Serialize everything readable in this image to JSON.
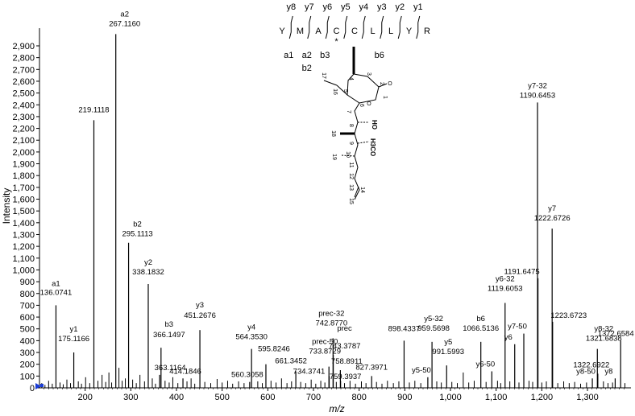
{
  "chart_data": {
    "type": "bar",
    "xlabel": "m/z",
    "ylabel": "Intensity",
    "xlim": [
      100,
      1390
    ],
    "ylim": [
      0,
      3050
    ],
    "x_ticks": [
      "200",
      "300",
      "400",
      "500",
      "600",
      "700",
      "800",
      "900",
      "1,000",
      "1,100",
      "1,200",
      "1,300"
    ],
    "y_ticks": [
      "0",
      "100",
      "200",
      "300",
      "400",
      "500",
      "600",
      "700",
      "800",
      "900",
      "1,000",
      "1,100",
      "1,200",
      "1,300",
      "1,400",
      "1,500",
      "1,600",
      "1,700",
      "1,800",
      "1,900",
      "2,000",
      "2,100",
      "2,200",
      "2,300",
      "2,400",
      "2,500",
      "2,600",
      "2,700",
      "2,800",
      "2,900"
    ],
    "peaks": [
      {
        "mz": 136.0741,
        "intensity": 700,
        "ion": "a1",
        "mass_label": "136.0741"
      },
      {
        "mz": 175.1166,
        "intensity": 300,
        "ion": "y1",
        "mass_label": "175.1166"
      },
      {
        "mz": 219.1118,
        "intensity": 2270,
        "ion": "",
        "mass_label": "219.1118"
      },
      {
        "mz": 267.116,
        "intensity": 3000,
        "ion": "a2",
        "mass_label": "267.1160"
      },
      {
        "mz": 295.1113,
        "intensity": 1230,
        "ion": "b2",
        "mass_label": "295.1113"
      },
      {
        "mz": 338.1832,
        "intensity": 880,
        "ion": "y2",
        "mass_label": "338.1832"
      },
      {
        "mz": 363.1164,
        "intensity": 110,
        "ion": "",
        "mass_label": "363.1164"
      },
      {
        "mz": 366.1497,
        "intensity": 340,
        "ion": "b3",
        "mass_label": "366.1497"
      },
      {
        "mz": 414.1846,
        "intensity": 80,
        "ion": "",
        "mass_label": "414.1846"
      },
      {
        "mz": 451.2676,
        "intensity": 490,
        "ion": "y3",
        "mass_label": "451.2676"
      },
      {
        "mz": 560.3058,
        "intensity": 50,
        "ion": "",
        "mass_label": "560.3058"
      },
      {
        "mz": 564.353,
        "intensity": 330,
        "ion": "y4",
        "mass_label": "564.3530"
      },
      {
        "mz": 595.8246,
        "intensity": 200,
        "ion": "",
        "mass_label": "595.8246"
      },
      {
        "mz": 661.3452,
        "intensity": 140,
        "ion": "",
        "mass_label": "661.3452"
      },
      {
        "mz": 733.8729,
        "intensity": 180,
        "ion": "prec-50",
        "mass_label": "733.8729"
      },
      {
        "mz": 734.3741,
        "intensity": 100,
        "ion": "",
        "mass_label": "734.3741"
      },
      {
        "mz": 742.877,
        "intensity": 420,
        "ion": "prec-32",
        "mass_label": "742.8770"
      },
      {
        "mz": 743.3787,
        "intensity": 280,
        "ion": "prec",
        "mass_label": "743.3787"
      },
      {
        "mz": 758.8911,
        "intensity": 150,
        "ion": "",
        "mass_label": "758.8911"
      },
      {
        "mz": 759.3937,
        "intensity": 60,
        "ion": "",
        "mass_label": "759.3937"
      },
      {
        "mz": 827.3971,
        "intensity": 100,
        "ion": "",
        "mass_label": "827.3971"
      },
      {
        "mz": 898.4337,
        "intensity": 400,
        "ion": "",
        "mass_label": "898.4337"
      },
      {
        "mz": 950.4,
        "intensity": 90,
        "ion": "y5-50",
        "mass_label": ""
      },
      {
        "mz": 959.5698,
        "intensity": 390,
        "ion": "y5-32",
        "mass_label": "959.5698"
      },
      {
        "mz": 991.5993,
        "intensity": 190,
        "ion": "y5",
        "mass_label": "991.5993"
      },
      {
        "mz": 1066.5136,
        "intensity": 390,
        "ion": "b6",
        "mass_label": "1066.5136"
      },
      {
        "mz": 1090.6,
        "intensity": 140,
        "ion": "y6-50",
        "mass_label": ""
      },
      {
        "mz": 1119.6053,
        "intensity": 720,
        "ion": "y6-32",
        "mass_label": "1119.6053"
      },
      {
        "mz": 1140.7,
        "intensity": 370,
        "ion": "y6",
        "mass_label": ""
      },
      {
        "mz": 1160.6,
        "intensity": 460,
        "ion": "y7-50",
        "mass_label": ""
      },
      {
        "mz": 1190.6453,
        "intensity": 2420,
        "ion": "y7-32",
        "mass_label": "1190.6453"
      },
      {
        "mz": 1191.6475,
        "intensity": 930,
        "ion": "",
        "mass_label": "1191.6475"
      },
      {
        "mz": 1222.6726,
        "intensity": 1350,
        "ion": "y7",
        "mass_label": "1222.6726"
      },
      {
        "mz": 1223.6723,
        "intensity": 560,
        "ion": "",
        "mass_label": "1223.6723"
      },
      {
        "mz": 1310.7,
        "intensity": 80,
        "ion": "y8-50",
        "mass_label": ""
      },
      {
        "mz": 1321.6838,
        "intensity": 330,
        "ion": "y8-32",
        "mass_label": "1321.6838"
      },
      {
        "mz": 1322.6922,
        "intensity": 120,
        "ion": "",
        "mass_label": "1322.6922"
      },
      {
        "mz": 1360.7,
        "intensity": 80,
        "ion": "y8",
        "mass_label": ""
      },
      {
        "mz": 1372.6584,
        "intensity": 400,
        "ion": "",
        "mass_label": "1372.6584"
      }
    ],
    "noise_peaks": [
      {
        "mz": 105,
        "intensity": 40
      },
      {
        "mz": 112,
        "intensity": 25
      },
      {
        "mz": 120,
        "intensity": 60
      },
      {
        "mz": 128,
        "intensity": 35
      },
      {
        "mz": 145,
        "intensity": 45
      },
      {
        "mz": 152,
        "intensity": 30
      },
      {
        "mz": 160,
        "intensity": 70
      },
      {
        "mz": 168,
        "intensity": 40
      },
      {
        "mz": 185,
        "intensity": 55
      },
      {
        "mz": 192,
        "intensity": 35
      },
      {
        "mz": 201,
        "intensity": 90
      },
      {
        "mz": 210,
        "intensity": 40
      },
      {
        "mz": 228,
        "intensity": 60
      },
      {
        "mz": 237,
        "intensity": 110
      },
      {
        "mz": 245,
        "intensity": 50
      },
      {
        "mz": 252,
        "intensity": 130
      },
      {
        "mz": 258,
        "intensity": 45
      },
      {
        "mz": 274,
        "intensity": 170
      },
      {
        "mz": 281,
        "intensity": 60
      },
      {
        "mz": 288,
        "intensity": 80
      },
      {
        "mz": 304,
        "intensity": 70
      },
      {
        "mz": 312,
        "intensity": 40
      },
      {
        "mz": 320,
        "intensity": 110
      },
      {
        "mz": 330,
        "intensity": 55
      },
      {
        "mz": 347,
        "intensity": 80
      },
      {
        "mz": 354,
        "intensity": 35
      },
      {
        "mz": 375,
        "intensity": 60
      },
      {
        "mz": 384,
        "intensity": 45
      },
      {
        "mz": 392,
        "intensity": 90
      },
      {
        "mz": 403,
        "intensity": 40
      },
      {
        "mz": 423,
        "intensity": 55
      },
      {
        "mz": 432,
        "intensity": 80
      },
      {
        "mz": 440,
        "intensity": 35
      },
      {
        "mz": 462,
        "intensity": 50
      },
      {
        "mz": 475,
        "intensity": 40
      },
      {
        "mz": 489,
        "intensity": 75
      },
      {
        "mz": 500,
        "intensity": 45
      },
      {
        "mz": 512,
        "intensity": 60
      },
      {
        "mz": 523,
        "intensity": 35
      },
      {
        "mz": 536,
        "intensity": 55
      },
      {
        "mz": 548,
        "intensity": 40
      },
      {
        "mz": 578,
        "intensity": 55
      },
      {
        "mz": 588,
        "intensity": 40
      },
      {
        "mz": 607,
        "intensity": 60
      },
      {
        "mz": 618,
        "intensity": 45
      },
      {
        "mz": 630,
        "intensity": 80
      },
      {
        "mz": 642,
        "intensity": 40
      },
      {
        "mz": 652,
        "intensity": 55
      },
      {
        "mz": 672,
        "intensity": 50
      },
      {
        "mz": 683,
        "intensity": 40
      },
      {
        "mz": 695,
        "intensity": 70
      },
      {
        "mz": 705,
        "intensity": 35
      },
      {
        "mz": 716,
        "intensity": 60
      },
      {
        "mz": 725,
        "intensity": 45
      },
      {
        "mz": 750,
        "intensity": 50
      },
      {
        "mz": 768,
        "intensity": 40
      },
      {
        "mz": 780,
        "intensity": 60
      },
      {
        "mz": 792,
        "intensity": 35
      },
      {
        "mz": 805,
        "intensity": 55
      },
      {
        "mz": 815,
        "intensity": 40
      },
      {
        "mz": 838,
        "intensity": 50
      },
      {
        "mz": 850,
        "intensity": 35
      },
      {
        "mz": 862,
        "intensity": 60
      },
      {
        "mz": 875,
        "intensity": 40
      },
      {
        "mz": 887,
        "intensity": 55
      },
      {
        "mz": 910,
        "intensity": 45
      },
      {
        "mz": 922,
        "intensity": 60
      },
      {
        "mz": 935,
        "intensity": 40
      },
      {
        "mz": 970,
        "intensity": 55
      },
      {
        "mz": 980,
        "intensity": 45
      },
      {
        "mz": 1003,
        "intensity": 50
      },
      {
        "mz": 1015,
        "intensity": 40
      },
      {
        "mz": 1028,
        "intensity": 130
      },
      {
        "mz": 1040,
        "intensity": 45
      },
      {
        "mz": 1052,
        "intensity": 60
      },
      {
        "mz": 1078,
        "intensity": 50
      },
      {
        "mz": 1103,
        "intensity": 60
      },
      {
        "mz": 1110,
        "intensity": 40
      },
      {
        "mz": 1130,
        "intensity": 55
      },
      {
        "mz": 1150,
        "intensity": 45
      },
      {
        "mz": 1172,
        "intensity": 60
      },
      {
        "mz": 1180,
        "intensity": 50
      },
      {
        "mz": 1200,
        "intensity": 45
      },
      {
        "mz": 1210,
        "intensity": 55
      },
      {
        "mz": 1235,
        "intensity": 40
      },
      {
        "mz": 1248,
        "intensity": 55
      },
      {
        "mz": 1260,
        "intensity": 40
      },
      {
        "mz": 1272,
        "intensity": 50
      },
      {
        "mz": 1285,
        "intensity": 35
      },
      {
        "mz": 1298,
        "intensity": 45
      },
      {
        "mz": 1335,
        "intensity": 55
      },
      {
        "mz": 1345,
        "intensity": 40
      },
      {
        "mz": 1355,
        "intensity": 45
      },
      {
        "mz": 1382,
        "intensity": 40
      }
    ],
    "annotation": {
      "sequence": [
        "Y",
        "M",
        "A",
        "C",
        "C",
        "L",
        "L",
        "Y",
        "R"
      ],
      "modification_mark": "*",
      "y_ions": [
        "y8",
        "y7",
        "y6",
        "y5",
        "y4",
        "y3",
        "y2",
        "y1"
      ],
      "b_ions": [
        "a1",
        "a2",
        "b3",
        "b6"
      ],
      "extra_ions": [
        "b2"
      ],
      "structure_numbers": [
        "1",
        "2",
        "3",
        "4",
        "5",
        "6",
        "7",
        "8",
        "9",
        "10",
        "11",
        "12",
        "13",
        "14",
        "15",
        "16",
        "17",
        "18",
        "19"
      ],
      "structure_groups": [
        "HO",
        "H3CO"
      ]
    },
    "marker_color": "#1a3cd6"
  }
}
